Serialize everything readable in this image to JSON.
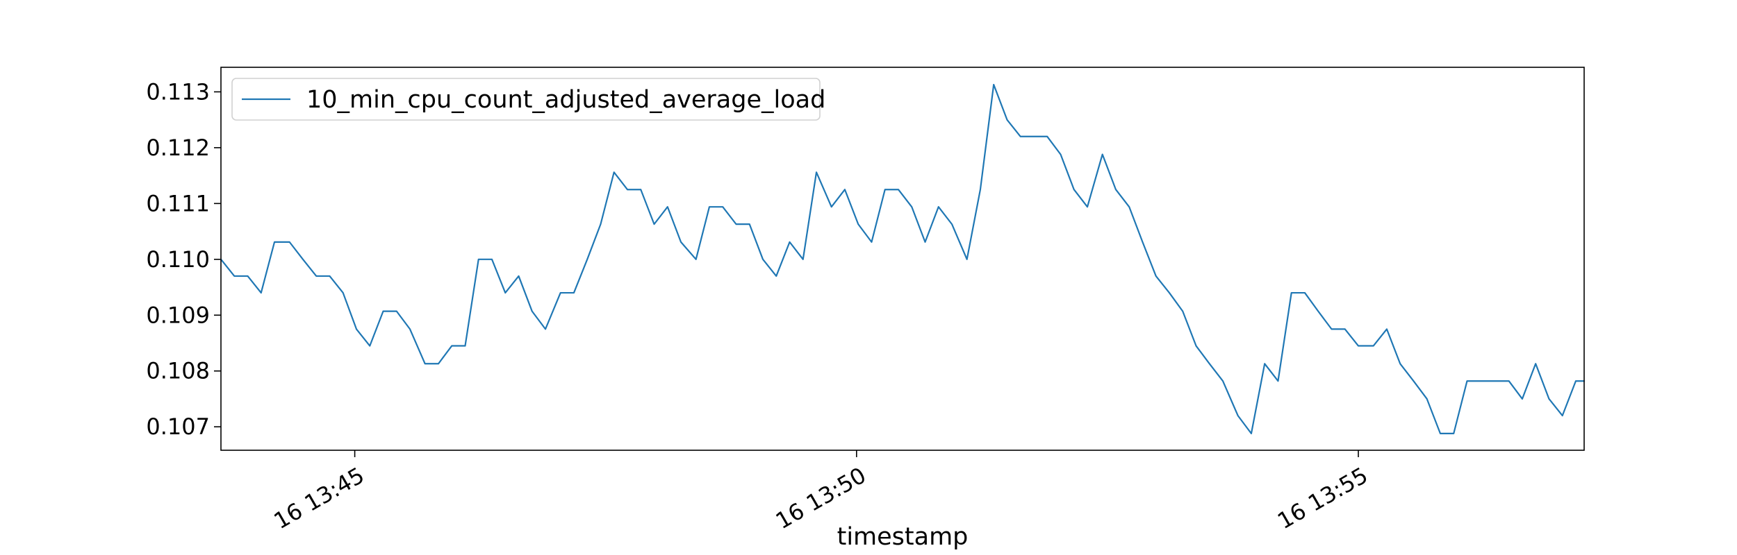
{
  "chart_data": {
    "type": "line",
    "title": "",
    "xlabel": "timestamp",
    "ylabel": "",
    "x_tick_labels": [
      "16 13:45",
      "16 13:50",
      "16 13:55"
    ],
    "y_tick_labels": [
      "0.107",
      "0.108",
      "0.109",
      "0.110",
      "0.111",
      "0.112",
      "0.113"
    ],
    "xlim": [
      "13:43:40",
      "13:57:15"
    ],
    "ylim": [
      0.10658,
      0.11344
    ],
    "grid": false,
    "legend_position": "upper-left",
    "series": [
      {
        "name": "10_min_cpu_count_adjusted_average_load",
        "color": "#1f77b4",
        "x": [
          "13:43:40",
          "13:43:48",
          "13:43:56",
          "13:44:04",
          "13:44:12",
          "13:44:21",
          "13:44:29",
          "13:44:37",
          "13:44:45",
          "13:44:53",
          "13:45:01",
          "13:45:09",
          "13:45:17",
          "13:45:25",
          "13:45:33",
          "13:45:42",
          "13:45:50",
          "13:45:58",
          "13:46:06",
          "13:46:14",
          "13:46:22",
          "13:46:30",
          "13:46:38",
          "13:46:46",
          "13:46:54",
          "13:47:03",
          "13:47:11",
          "13:47:19",
          "13:47:27",
          "13:47:35",
          "13:47:43",
          "13:47:51",
          "13:47:59",
          "13:48:07",
          "13:48:15",
          "13:48:24",
          "13:48:32",
          "13:48:40",
          "13:48:48",
          "13:48:56",
          "13:49:04",
          "13:49:12",
          "13:49:20",
          "13:49:28",
          "13:49:36",
          "13:49:45",
          "13:49:53",
          "13:50:01",
          "13:50:09",
          "13:50:17",
          "13:50:25",
          "13:50:33",
          "13:50:41",
          "13:50:49",
          "13:50:57",
          "13:51:06",
          "13:51:14",
          "13:51:22",
          "13:51:30",
          "13:51:38",
          "13:51:46",
          "13:51:54",
          "13:52:02",
          "13:52:10",
          "13:52:18",
          "13:52:27",
          "13:52:35",
          "13:52:43",
          "13:52:51",
          "13:52:59",
          "13:53:07",
          "13:53:15",
          "13:53:23",
          "13:53:31",
          "13:53:39",
          "13:53:48",
          "13:53:56",
          "13:54:04",
          "13:54:12",
          "13:54:20",
          "13:54:28",
          "13:54:36",
          "13:54:44",
          "13:54:52",
          "13:55:00",
          "13:55:09",
          "13:55:17",
          "13:55:25",
          "13:55:33",
          "13:55:41",
          "13:55:49",
          "13:55:57",
          "13:56:05",
          "13:56:13",
          "13:56:21",
          "13:56:30",
          "13:56:38",
          "13:56:46",
          "13:56:54",
          "13:57:02",
          "13:57:10",
          "13:57:15"
        ],
        "y": [
          0.11,
          0.1097,
          0.1097,
          0.1094,
          0.11031,
          0.11031,
          0.11,
          0.1097,
          0.1097,
          0.1094,
          0.10875,
          0.10845,
          0.10907,
          0.10907,
          0.10875,
          0.10813,
          0.10813,
          0.10845,
          0.10845,
          0.11,
          0.11,
          0.1094,
          0.1097,
          0.10907,
          0.10875,
          0.1094,
          0.1094,
          0.11,
          0.11063,
          0.11156,
          0.11125,
          0.11125,
          0.11063,
          0.11094,
          0.11031,
          0.11,
          0.11094,
          0.11094,
          0.11063,
          0.11063,
          0.11,
          0.1097,
          0.11031,
          0.11,
          0.11156,
          0.11094,
          0.11125,
          0.11063,
          0.11031,
          0.11125,
          0.11125,
          0.11094,
          0.11031,
          0.11094,
          0.11063,
          0.11,
          0.11125,
          0.11313,
          0.1125,
          0.1122,
          0.1122,
          0.1122,
          0.11188,
          0.11125,
          0.11094,
          0.11188,
          0.11125,
          0.11094,
          0.11031,
          0.1097,
          0.1094,
          0.10907,
          0.10845,
          0.10813,
          0.10782,
          0.1072,
          0.10688,
          0.10813,
          0.10782,
          0.1094,
          0.1094,
          0.10907,
          0.10875,
          0.10875,
          0.10845,
          0.10845,
          0.10875,
          0.10813,
          0.10782,
          0.1075,
          0.10688,
          0.10688,
          0.10782,
          0.10782,
          0.10782,
          0.10782,
          0.1075,
          0.10813,
          0.1075,
          0.1072,
          0.10782,
          0.10782
        ]
      }
    ]
  }
}
